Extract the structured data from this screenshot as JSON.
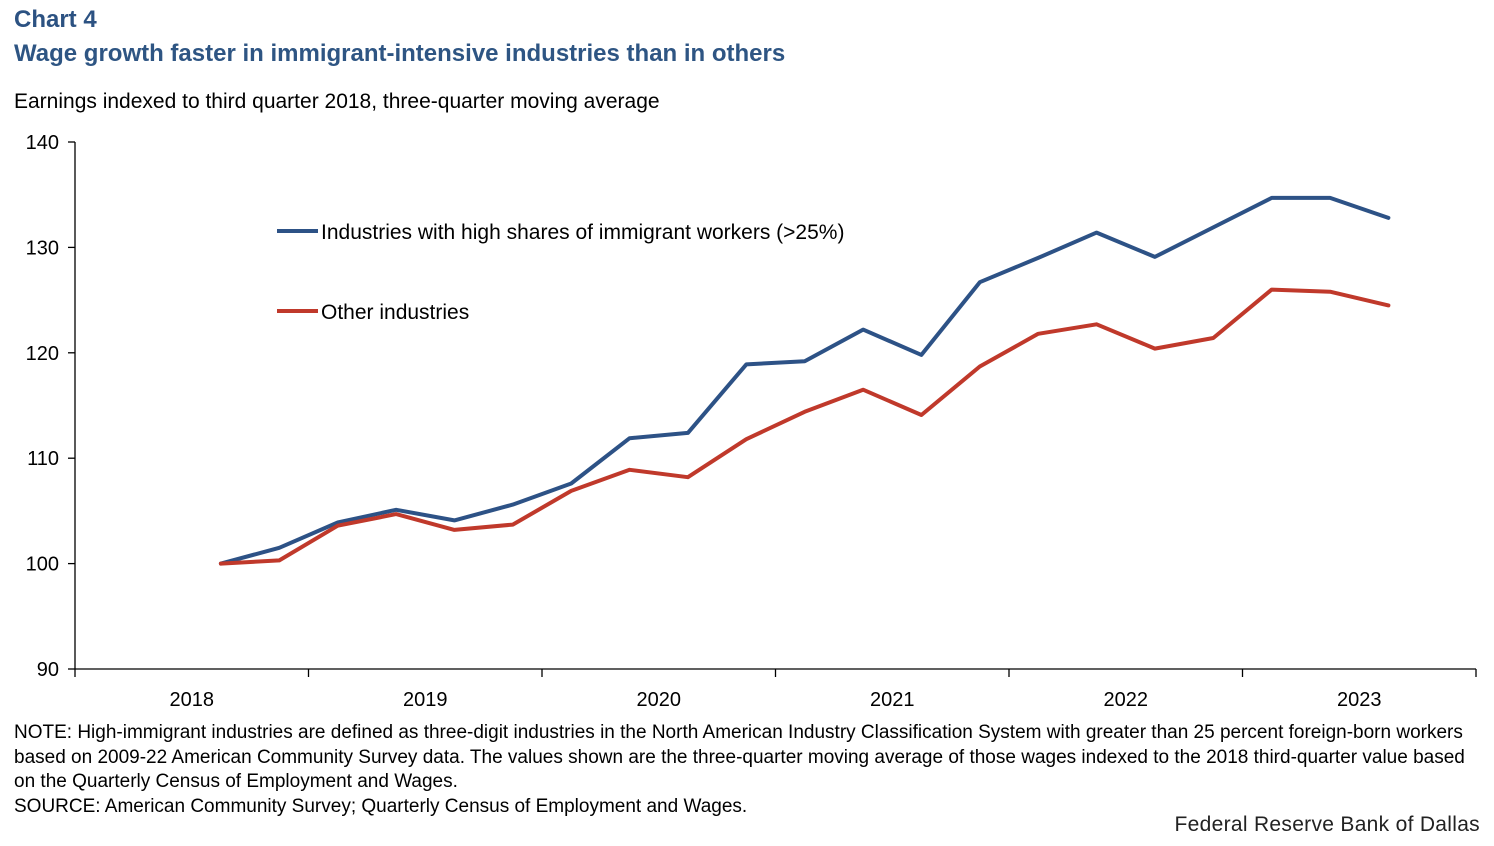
{
  "header": {
    "chart_label": "Chart 4",
    "title": "Wage growth faster in immigrant-intensive industries than in others",
    "subtitle": "Earnings indexed to third quarter 2018, three-quarter moving average"
  },
  "chart_data": {
    "type": "line",
    "x": [
      "2018Q3",
      "2018Q4",
      "2019Q1",
      "2019Q2",
      "2019Q3",
      "2019Q4",
      "2020Q1",
      "2020Q2",
      "2020Q3",
      "2020Q4",
      "2021Q1",
      "2021Q2",
      "2021Q3",
      "2021Q4",
      "2022Q1",
      "2022Q2",
      "2022Q3",
      "2022Q4",
      "2023Q1",
      "2023Q2",
      "2023Q3"
    ],
    "year_labels": [
      "2018",
      "2019",
      "2020",
      "2021",
      "2022",
      "2023"
    ],
    "series": [
      {
        "name": "Industries with high shares of immigrant workers (>25%)",
        "color": "#2d5286",
        "values": [
          100.0,
          101.5,
          103.9,
          105.1,
          104.1,
          105.6,
          107.6,
          111.9,
          112.4,
          118.9,
          119.2,
          122.2,
          119.8,
          126.7,
          129.0,
          131.4,
          129.1,
          131.9,
          134.7,
          134.7,
          132.8
        ]
      },
      {
        "name": "Other industries",
        "color": "#c0392b",
        "values": [
          100.0,
          100.3,
          103.6,
          104.7,
          103.2,
          103.7,
          106.9,
          108.9,
          108.2,
          111.8,
          114.4,
          116.5,
          114.1,
          118.7,
          121.8,
          122.7,
          120.4,
          121.4,
          126.0,
          125.8,
          124.5
        ]
      }
    ],
    "ylim": [
      90,
      140
    ],
    "yticks": [
      90,
      100,
      110,
      120,
      130,
      140
    ],
    "xlabel": "",
    "ylabel": "",
    "grid": false,
    "legend_position": "top-left inside plot"
  },
  "footer": {
    "note": "NOTE: High-immigrant industries are defined as three-digit industries in the North American Industry Classification System with greater than 25 percent foreign-born workers based on 2009-22 American Community Survey data. The values shown are the three-quarter moving average of those wages indexed to the 2018 third-quarter value based on the Quarterly Census of Employment and Wages.",
    "source": "SOURCE: American Community Survey; Quarterly Census of Employment and Wages.",
    "brand": "Federal Reserve Bank of Dallas"
  }
}
